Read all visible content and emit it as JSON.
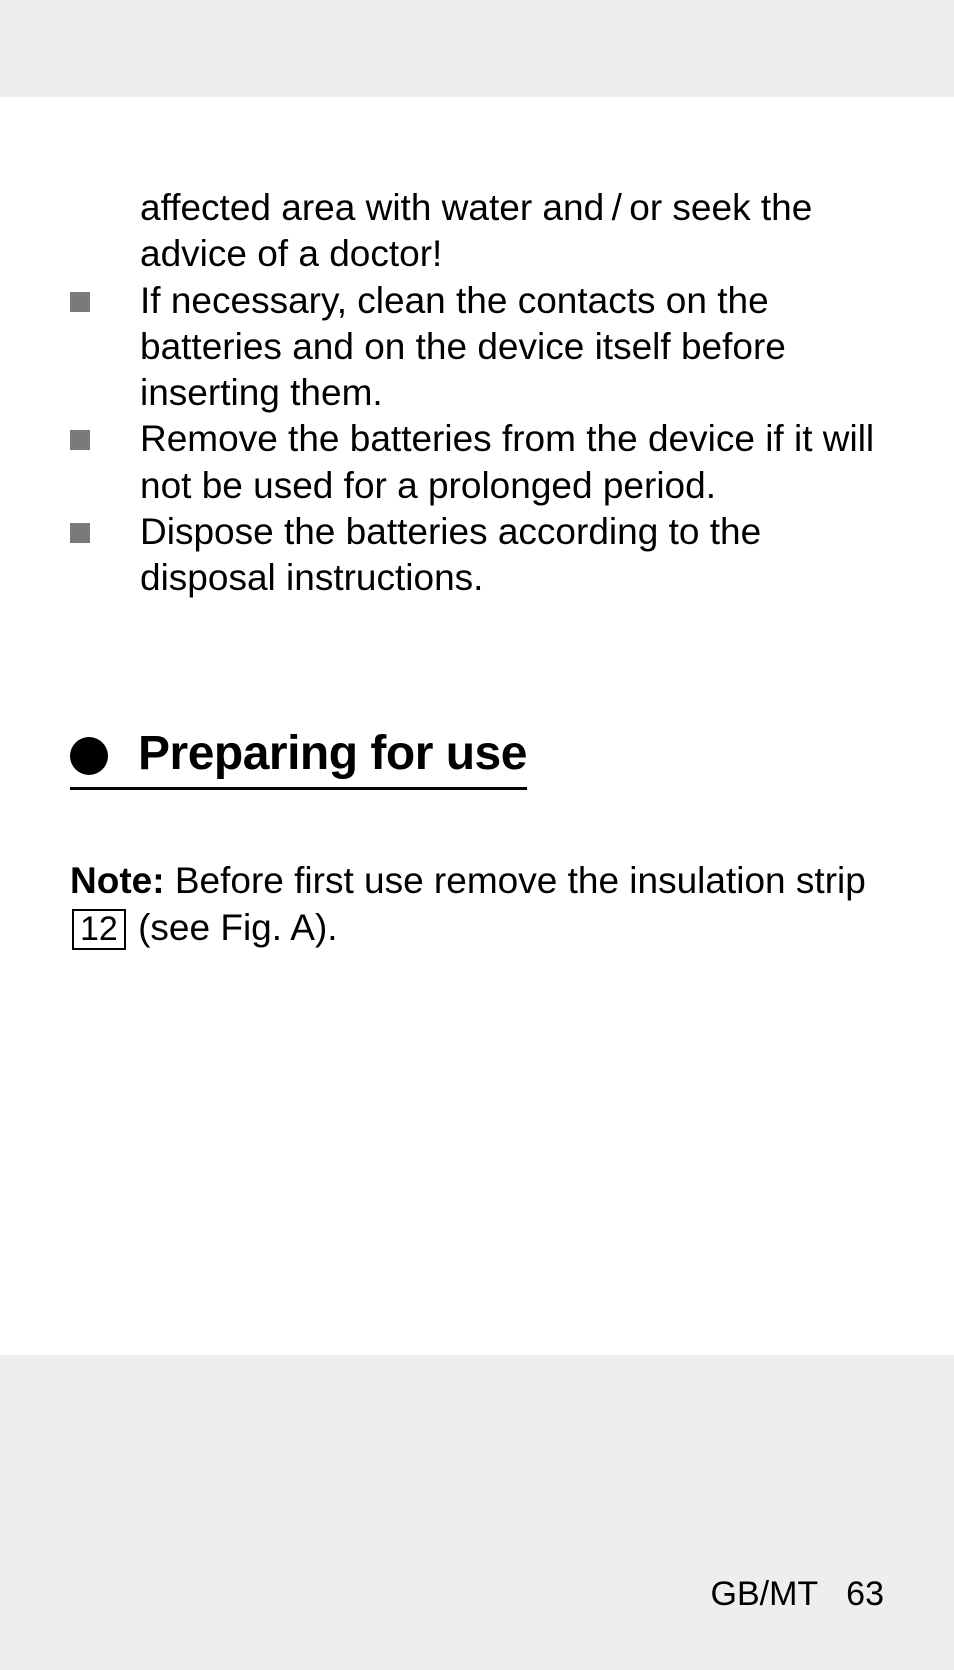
{
  "continued_text": "affected area with water and / or seek the advice of a doctor!",
  "bullets": [
    "If necessary, clean the contacts on the batteries and on the device itself before inserting them.",
    "Remove the batteries from the device if it will not be used for a prolonged period.",
    "Dispose the batteries according to the disposal instructions."
  ],
  "heading": "Preparing for use",
  "note": {
    "label": "Note:",
    "text_before_ref": " Before first use remove the insula­tion strip ",
    "ref_number": "12",
    "text_after_ref": " (see Fig. A)."
  },
  "footer": {
    "region": "GB/MT",
    "page": "63"
  },
  "colors": {
    "page_bg": "#ffffff",
    "outer_bg": "#eeeeee",
    "bullet_gray": "#7a7a7a",
    "text": "#000000"
  }
}
